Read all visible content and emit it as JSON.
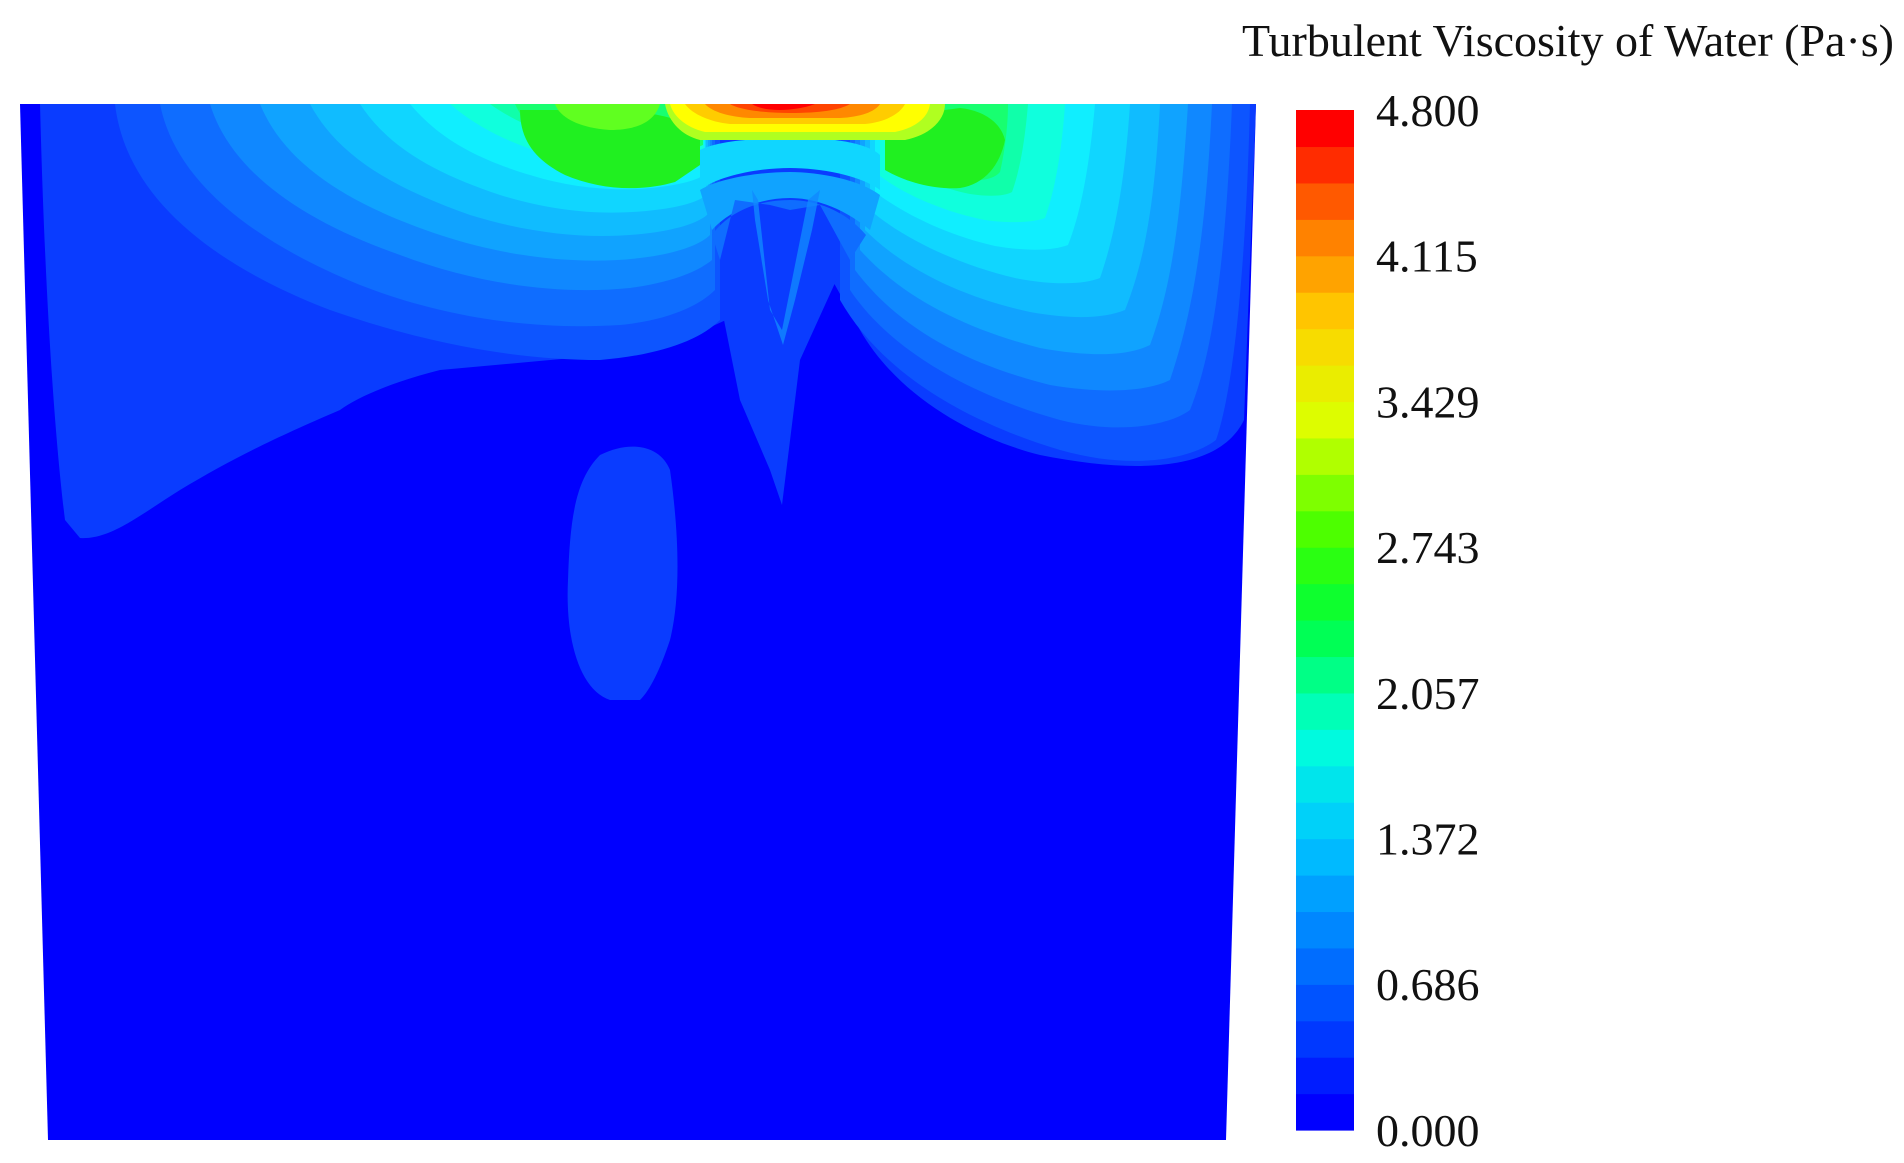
{
  "legend": {
    "title": "Turbulent Viscosity of Water (Pa·s)",
    "tick_labels": [
      "4.800",
      "4.115",
      "3.429",
      "2.743",
      "2.057",
      "1.372",
      "0.686",
      "0.000"
    ]
  },
  "chart_data": {
    "type": "heatmap",
    "title": "",
    "colorbar": {
      "label": "Turbulent Viscosity of Water (Pa·s)",
      "min": 0.0,
      "max": 4.8,
      "ticks": [
        0.0,
        0.686,
        1.372,
        2.057,
        2.743,
        3.429,
        4.115,
        4.8
      ],
      "levels": 28,
      "colormap": "rainbow (blue-cyan-green-yellow-red)"
    },
    "field_description_levels": {
      "background": 0.0,
      "upper_left_lobe_peak": 1.5,
      "upper_right_lobe_peak": 1.6,
      "top_center_jet_peak": 4.8,
      "green_bands_near_top": 2.8,
      "left_lower_patch": 0.2,
      "isolated_blob": 0.2
    }
  }
}
